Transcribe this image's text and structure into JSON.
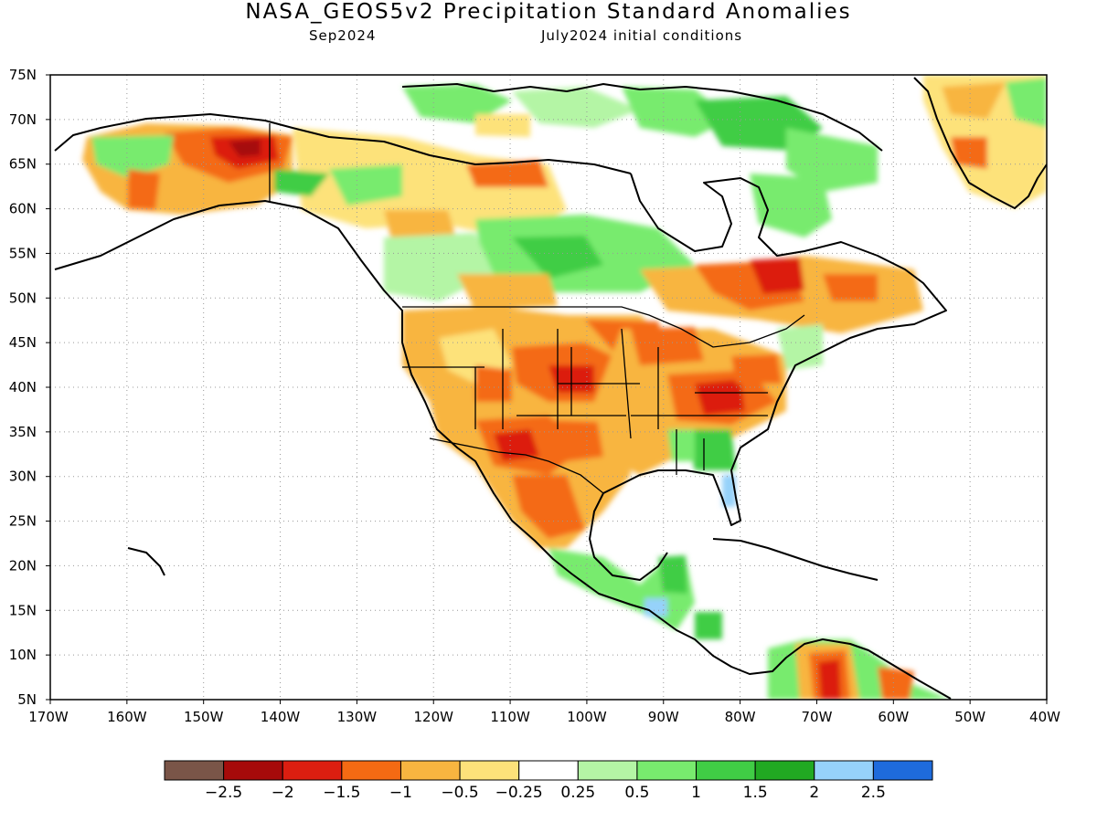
{
  "title": "NASA_GEOS5v2 Precipitation Standard Anomalies",
  "subtitle_left": "Sep2024",
  "subtitle_right": "July2024 initial conditions",
  "axes": {
    "lat_labels": [
      "75N",
      "70N",
      "65N",
      "60N",
      "55N",
      "50N",
      "45N",
      "40N",
      "35N",
      "30N",
      "25N",
      "20N",
      "15N",
      "10N",
      "5N"
    ],
    "lon_labels": [
      "170W",
      "160W",
      "150W",
      "140W",
      "130W",
      "120W",
      "110W",
      "100W",
      "90W",
      "80W",
      "70W",
      "60W",
      "50W",
      "40W"
    ],
    "grid": "dotted"
  },
  "legend": {
    "colors": [
      "#7a5548",
      "#a60a0a",
      "#dc1e10",
      "#f46a13",
      "#f8b540",
      "#fde27a",
      "#ffffff",
      "#b4f5a5",
      "#78eb6e",
      "#40cd45",
      "#21a922",
      "#96d2fa",
      "#1e6bdc"
    ],
    "labels": [
      "−2.5",
      "−2",
      "−1.5",
      "−1",
      "−0.5",
      "−0.25",
      "0.25",
      "0.5",
      "1",
      "1.5",
      "2",
      "2.5"
    ]
  },
  "anomaly_colors": {
    "very_dry": "#a60a0a",
    "dry_strong": "#dc1e10",
    "dry": "#f46a13",
    "dry_moderate": "#f8b540",
    "dry_light": "#fde27a",
    "wet_light": "#b4f5a5",
    "wet": "#78eb6e",
    "wet_moderate": "#40cd45",
    "wet_strong": "#21a922",
    "very_wet": "#96d2fa",
    "very_wet_strong": "#1e6bdc"
  }
}
